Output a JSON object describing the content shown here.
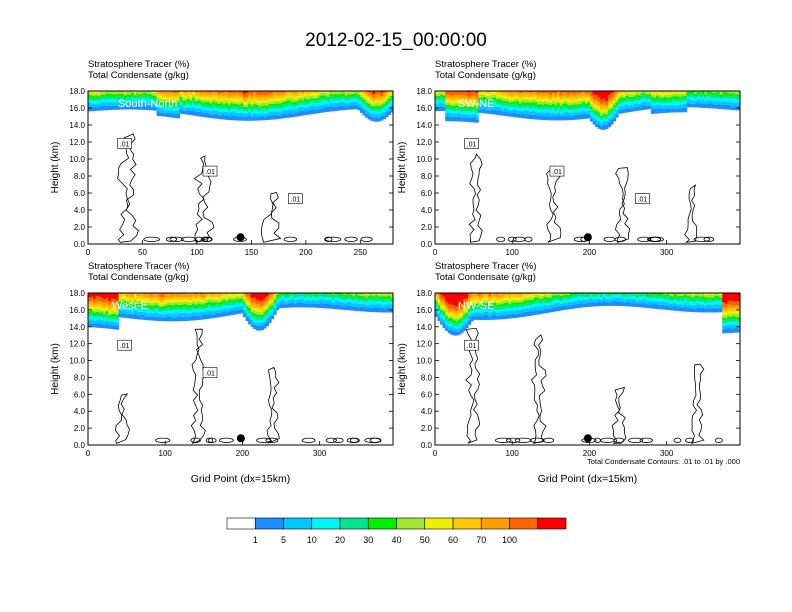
{
  "title": "2012-02-15_00:00:00",
  "chart_data": [
    {
      "type": "heatmap",
      "name": "South-North",
      "title_lines": [
        "Stratosphere Tracer   (%)",
        "Total Condensate   (g/kg)"
      ],
      "ylabel": "Height (km)",
      "xlabel": "",
      "xlim": [
        0,
        280
      ],
      "ylim": [
        0,
        18
      ],
      "xticks": [
        0,
        50,
        100,
        150,
        200,
        250
      ],
      "yticks": [
        0,
        2,
        4,
        6,
        8,
        10,
        12,
        14,
        16,
        18
      ],
      "contour_labels": [
        ".01",
        ".01",
        ".01"
      ],
      "marker_x": 140
    },
    {
      "type": "heatmap",
      "name": "SW-NE",
      "title_lines": [
        "Stratosphere Tracer   (%)",
        "Total Condensate   (g/kg)"
      ],
      "ylabel": "Height (km)",
      "xlabel": "",
      "xlim": [
        0,
        395
      ],
      "ylim": [
        0,
        18
      ],
      "xticks": [
        0,
        100,
        200,
        300
      ],
      "yticks": [
        0,
        2,
        4,
        6,
        8,
        10,
        12,
        14,
        16,
        18
      ],
      "contour_labels": [
        ".01",
        ".01",
        ".01"
      ],
      "marker_x": 198
    },
    {
      "type": "heatmap",
      "name": "West-E",
      "title_lines": [
        "Stratosphere Tracer   (%)",
        "Total Condensate   (g/kg)"
      ],
      "ylabel": "Height (km)",
      "xlabel": "Grid Point (dx=15km)",
      "xlim": [
        0,
        395
      ],
      "ylim": [
        0,
        18
      ],
      "xticks": [
        0,
        100,
        200,
        300
      ],
      "yticks": [
        0,
        2,
        4,
        6,
        8,
        10,
        12,
        14,
        16,
        18
      ],
      "contour_labels": [
        ".01",
        ".01"
      ],
      "marker_x": 198
    },
    {
      "type": "heatmap",
      "name": "NW-SE",
      "title_lines": [
        "Stratosphere Tracer   (%)",
        "Total Condensate   (g/kg)"
      ],
      "ylabel": "Height (km)",
      "xlabel": "Grid Point (dx=15km)",
      "xlim": [
        0,
        395
      ],
      "ylim": [
        0,
        18
      ],
      "xticks": [
        0,
        100,
        200,
        300
      ],
      "yticks": [
        0,
        2,
        4,
        6,
        8,
        10,
        12,
        14,
        16,
        18
      ],
      "contour_labels": [
        ".01"
      ],
      "marker_x": 198,
      "contour_note": "Total Condensate Contours: .01 to .01 by .000"
    }
  ],
  "colorbar": {
    "labels": [
      "1",
      "5",
      "10",
      "20",
      "30",
      "40",
      "50",
      "60",
      "70",
      "100"
    ],
    "colors": [
      "#ffffff",
      "#1e8cff",
      "#00c8ff",
      "#00f5f5",
      "#00e68c",
      "#00f000",
      "#a0e632",
      "#f0f000",
      "#ffc800",
      "#ffa000",
      "#ff6400",
      "#ff0000"
    ]
  }
}
